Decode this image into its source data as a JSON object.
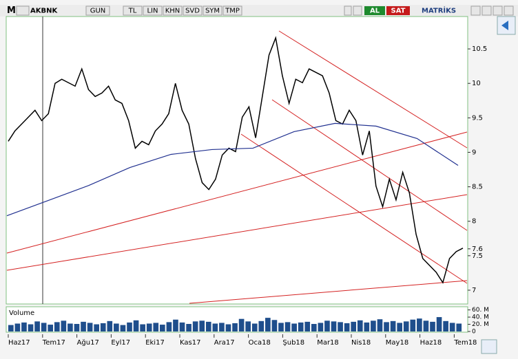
{
  "toolbar": {
    "logo": "M",
    "symbol": "AKBNK",
    "buttons": [
      "GUN",
      "TL",
      "LIN",
      "KHN",
      "SVD",
      "SYM",
      "TMP"
    ],
    "buy": "AL",
    "sell": "SAT",
    "brand": "MATRİKS"
  },
  "chart_data": {
    "type": "line",
    "color": "#000000",
    "values": [
      9.16,
      9.31,
      9.41,
      9.51,
      9.61,
      9.46,
      9.56,
      10.0,
      10.06,
      10.01,
      9.96,
      10.21,
      9.91,
      9.81,
      9.86,
      9.96,
      9.76,
      9.71,
      9.46,
      9.06,
      9.16,
      9.11,
      9.31,
      9.41,
      9.56,
      10.0,
      9.61,
      9.41,
      8.91,
      8.56,
      8.46,
      8.61,
      8.96,
      9.06,
      9.01,
      9.51,
      9.66,
      9.21,
      9.81,
      10.41,
      10.66,
      10.11,
      9.71,
      10.06,
      10.01,
      10.21,
      10.16,
      10.11,
      9.86,
      9.46,
      9.41,
      9.61,
      9.46,
      8.96,
      9.31,
      8.51,
      8.21,
      8.61,
      8.31,
      8.71,
      8.41,
      7.81,
      7.46,
      7.36,
      7.26,
      7.11,
      7.46,
      7.56,
      7.61
    ],
    "ma_color": "#1f2f8f",
    "ma_values": [
      8.08,
      8.3,
      8.52,
      8.78,
      8.97,
      9.04,
      9.06,
      9.3,
      9.42,
      9.38,
      9.2,
      8.81
    ],
    "x_labels": [
      "Haz17",
      "Tem17",
      "Ağu17",
      "Eyl17",
      "Eki17",
      "Kas17",
      "Ara17",
      "Oca18",
      "Şub18",
      "Mar18",
      "Nis18",
      "May18",
      "Haz18",
      "Tem18"
    ],
    "ylim": [
      6.8,
      10.97
    ],
    "yticks": [
      7,
      7.5,
      7.6,
      8,
      8.5,
      9,
      9.5,
      10,
      10.5
    ],
    "volume": {
      "title": "Volume",
      "color": "#1f4e8c",
      "values": [
        18,
        22,
        25,
        20,
        28,
        24,
        19,
        26,
        30,
        22,
        21,
        27,
        24,
        20,
        23,
        29,
        22,
        18,
        25,
        31,
        20,
        22,
        24,
        19,
        26,
        33,
        25,
        21,
        28,
        30,
        27,
        22,
        24,
        20,
        23,
        35,
        28,
        22,
        29,
        38,
        32,
        24,
        26,
        22,
        25,
        27,
        21,
        24,
        30,
        28,
        26,
        23,
        27,
        31,
        25,
        30,
        34,
        26,
        29,
        24,
        28,
        33,
        36,
        30,
        27,
        40,
        29,
        24,
        22
      ],
      "ylim": [
        0,
        65
      ],
      "yticks": [
        {
          "value": 60,
          "label": "60. M"
        },
        {
          "value": 40,
          "label": "40. M"
        },
        {
          "value": 20,
          "label": "20. M"
        },
        0
      ]
    }
  }
}
